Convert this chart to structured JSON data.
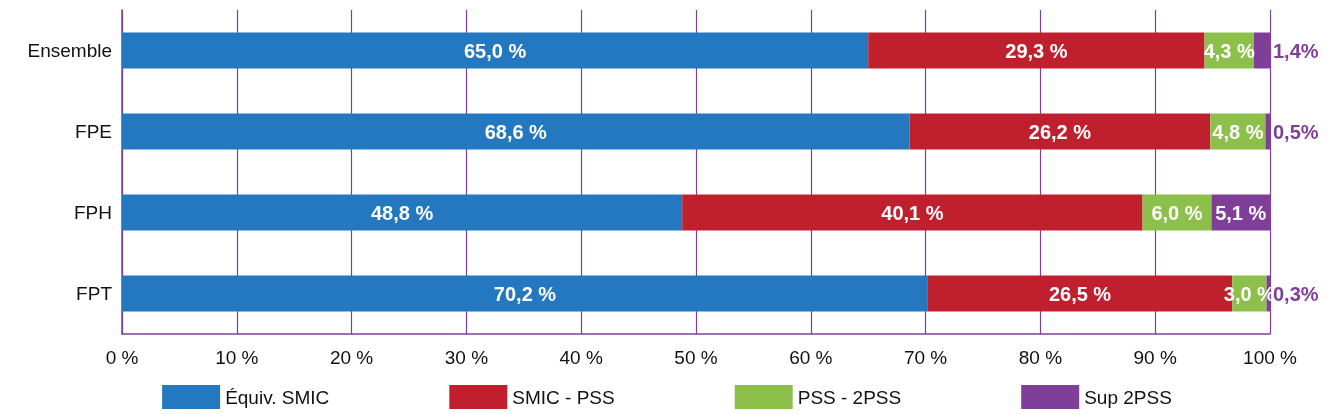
{
  "chart_data": {
    "type": "bar",
    "orientation": "horizontal",
    "stacked": true,
    "categories": [
      "Ensemble",
      "FPE",
      "FPH",
      "FPT"
    ],
    "series": [
      {
        "name": "Équiv. SMIC",
        "color": "#2378c0",
        "values": [
          65.0,
          68.6,
          48.8,
          70.2
        ],
        "value_labels": [
          "65,0 %",
          "68,6 %",
          "48,8 %",
          "70,2 %"
        ]
      },
      {
        "name": "SMIC - PSS",
        "color": "#c0202e",
        "values": [
          29.3,
          26.2,
          40.1,
          26.5
        ],
        "value_labels": [
          "29,3 %",
          "26,2 %",
          "40,1 %",
          "26,5 %"
        ]
      },
      {
        "name": "PSS - 2PSS",
        "color": "#8dc04a",
        "values": [
          4.3,
          4.8,
          6.0,
          3.0
        ],
        "value_labels": [
          "4,3 %",
          "4,8 %",
          "6,0 %",
          "3,0 %"
        ]
      },
      {
        "name": "Sup 2PSS",
        "color": "#7f3f98",
        "values": [
          1.4,
          0.5,
          5.1,
          0.3
        ],
        "value_labels": [
          "1,4%",
          "0,5%",
          "5,1 %",
          "0,3%"
        ]
      }
    ],
    "xlim": [
      0,
      100
    ],
    "xticks": [
      {
        "value": 0,
        "label": "0 %"
      },
      {
        "value": 10,
        "label": "10 %"
      },
      {
        "value": 20,
        "label": "20 %"
      },
      {
        "value": 30,
        "label": "30 %"
      },
      {
        "value": 40,
        "label": "40 %"
      },
      {
        "value": 50,
        "label": "50 %"
      },
      {
        "value": 60,
        "label": "60 %"
      },
      {
        "value": 70,
        "label": "70 %"
      },
      {
        "value": 80,
        "label": "80 %"
      },
      {
        "value": 90,
        "label": "90 %"
      },
      {
        "value": 100,
        "label": "100 %"
      }
    ],
    "grid": "x",
    "legend": "bottom"
  }
}
